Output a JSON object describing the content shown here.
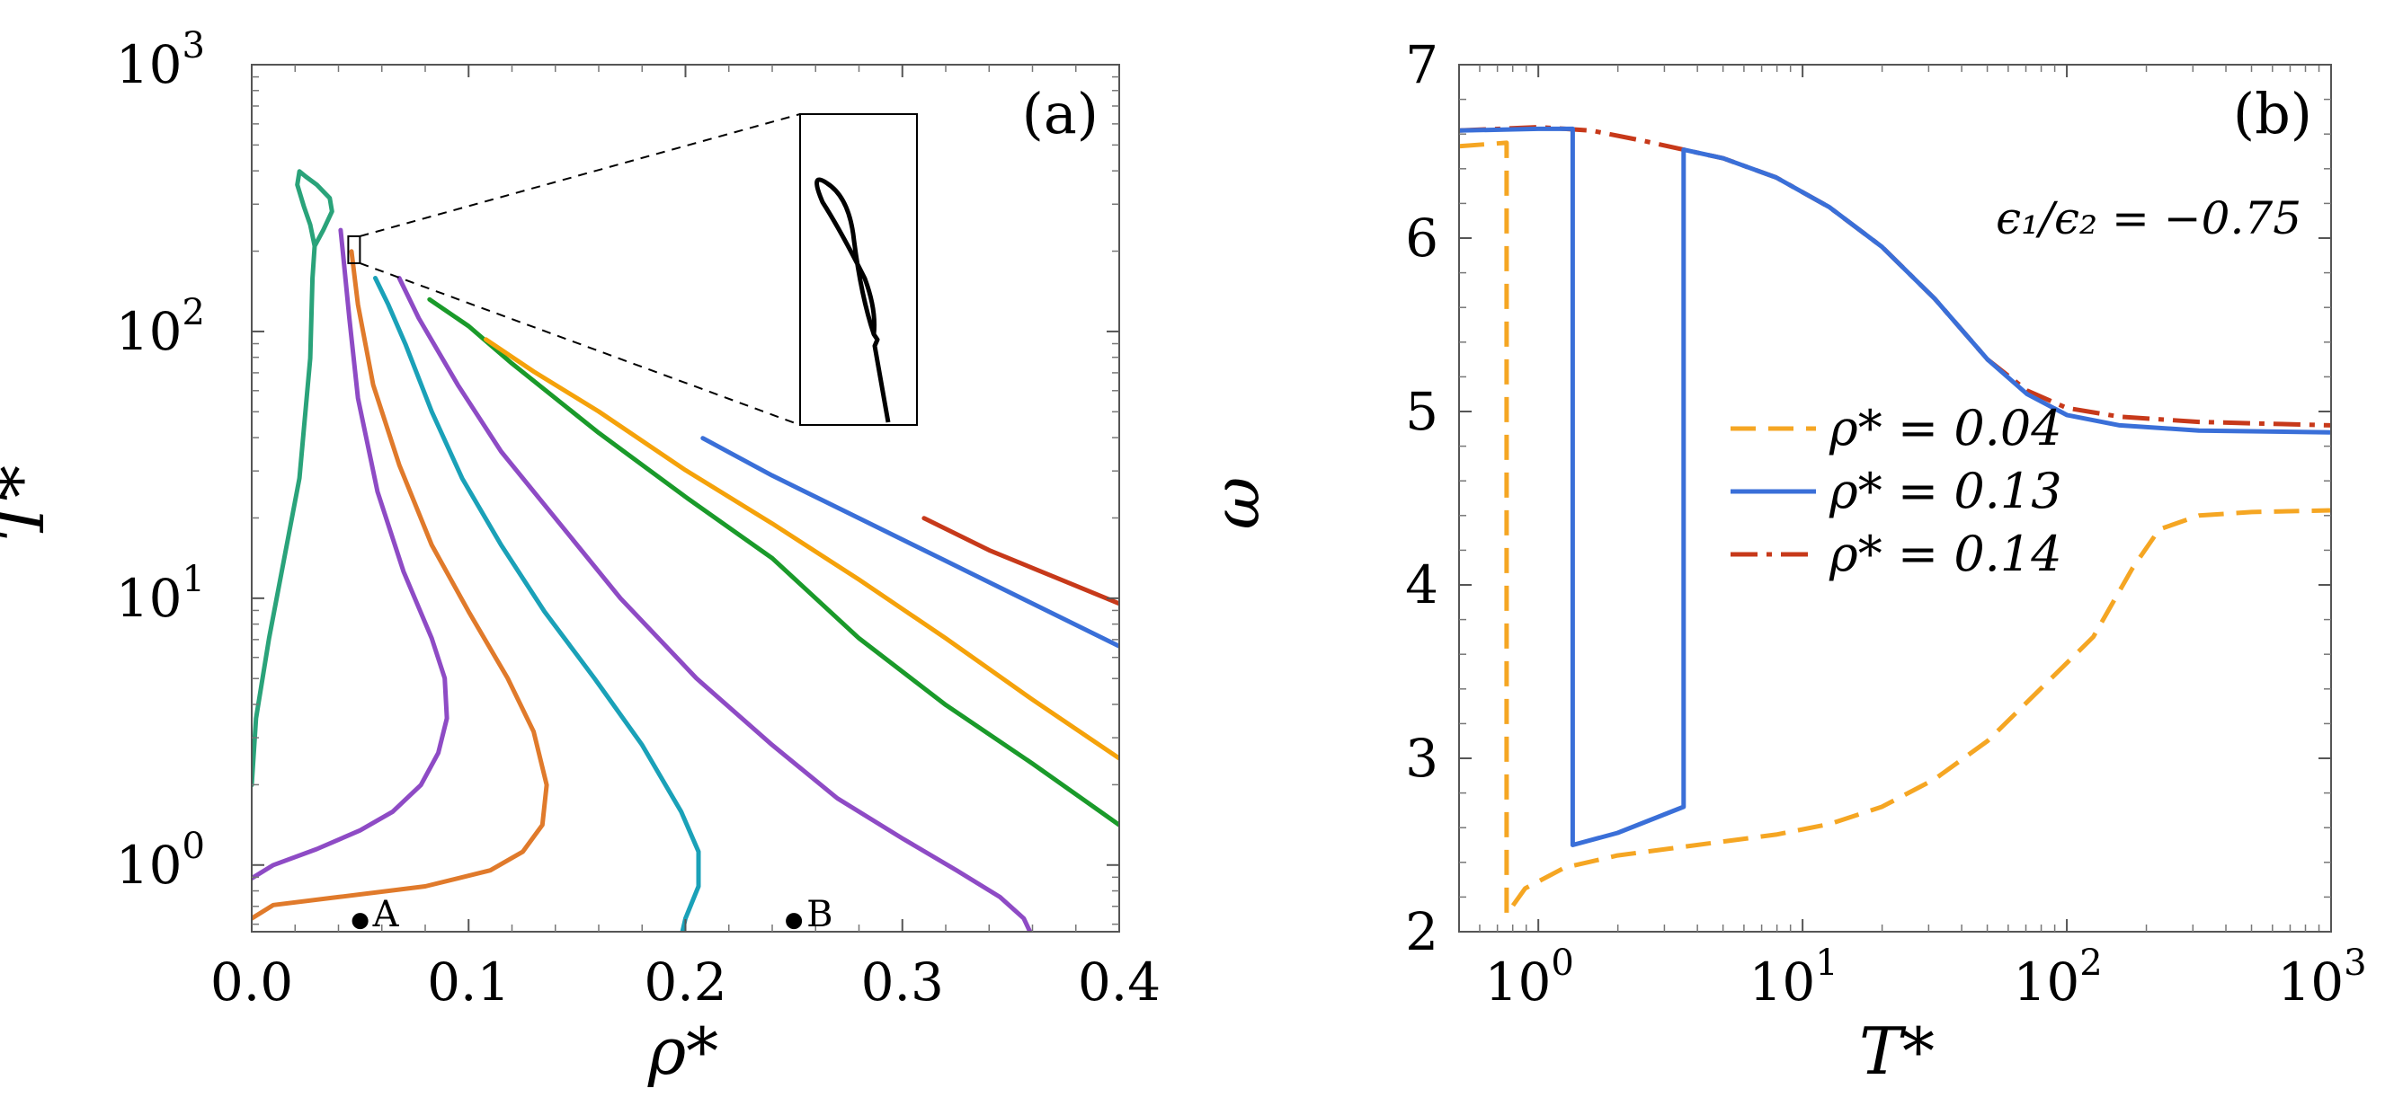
{
  "chart_data": [
    {
      "panel": "a",
      "type": "line",
      "panel_label": "(a)",
      "xlabel": "ρ*",
      "ylabel": "T*",
      "xlim": [
        0.0,
        0.4
      ],
      "ylim_log10": [
        -0.25,
        3.0
      ],
      "y_scale": "log",
      "x_ticks": [
        {
          "value": 0.0,
          "label": "0.0"
        },
        {
          "value": 0.1,
          "label": "0.1"
        },
        {
          "value": 0.2,
          "label": "0.2"
        },
        {
          "value": 0.3,
          "label": "0.3"
        },
        {
          "value": 0.4,
          "label": "0.4"
        }
      ],
      "y_ticks": [
        {
          "exp": 0,
          "base": "10",
          "sup": "0"
        },
        {
          "exp": 1,
          "base": "10",
          "sup": "1"
        },
        {
          "exp": 2,
          "base": "10",
          "sup": "2"
        },
        {
          "exp": 3,
          "base": "10",
          "sup": "3"
        }
      ],
      "series": [
        {
          "name": "teal-loop",
          "color": "#2aa37a",
          "points": [
            [
              0.0,
              0.3
            ],
            [
              0.002,
              0.55
            ],
            [
              0.008,
              0.85
            ],
            [
              0.015,
              1.15
            ],
            [
              0.022,
              1.45
            ],
            [
              0.027,
              1.9
            ],
            [
              0.028,
              2.2
            ],
            [
              0.029,
              2.32
            ],
            [
              0.033,
              2.38
            ],
            [
              0.037,
              2.45
            ],
            [
              0.036,
              2.5
            ],
            [
              0.03,
              2.55
            ],
            [
              0.025,
              2.58
            ],
            [
              0.022,
              2.6
            ],
            [
              0.021,
              2.55
            ],
            [
              0.024,
              2.47
            ],
            [
              0.027,
              2.4
            ],
            [
              0.029,
              2.32
            ]
          ]
        },
        {
          "name": "purple-inner",
          "color": "#8e4bc5",
          "points": [
            [
              0.0,
              -0.05
            ],
            [
              0.01,
              0.0
            ],
            [
              0.03,
              0.06
            ],
            [
              0.05,
              0.13
            ],
            [
              0.065,
              0.2
            ],
            [
              0.078,
              0.3
            ],
            [
              0.086,
              0.42
            ],
            [
              0.09,
              0.55
            ],
            [
              0.089,
              0.7
            ],
            [
              0.083,
              0.85
            ],
            [
              0.07,
              1.1
            ],
            [
              0.058,
              1.4
            ],
            [
              0.049,
              1.75
            ],
            [
              0.045,
              2.05
            ],
            [
              0.042,
              2.3
            ],
            [
              0.041,
              2.38
            ]
          ]
        },
        {
          "name": "orange-dark",
          "color": "#e07a2b",
          "points": [
            [
              0.0,
              -0.2
            ],
            [
              0.01,
              -0.15
            ],
            [
              0.04,
              -0.12
            ],
            [
              0.08,
              -0.08
            ],
            [
              0.11,
              -0.02
            ],
            [
              0.125,
              0.05
            ],
            [
              0.134,
              0.15
            ],
            [
              0.136,
              0.3
            ],
            [
              0.13,
              0.5
            ],
            [
              0.118,
              0.7
            ],
            [
              0.1,
              0.95
            ],
            [
              0.083,
              1.2
            ],
            [
              0.068,
              1.5
            ],
            [
              0.056,
              1.8
            ],
            [
              0.049,
              2.1
            ],
            [
              0.046,
              2.3
            ]
          ]
        },
        {
          "name": "cyan",
          "color": "#1aa1b8",
          "points": [
            [
              0.198,
              -0.27
            ],
            [
              0.2,
              -0.2
            ],
            [
              0.206,
              -0.08
            ],
            [
              0.206,
              0.05
            ],
            [
              0.198,
              0.2
            ],
            [
              0.18,
              0.45
            ],
            [
              0.158,
              0.7
            ],
            [
              0.135,
              0.95
            ],
            [
              0.115,
              1.2
            ],
            [
              0.097,
              1.45
            ],
            [
              0.083,
              1.7
            ],
            [
              0.071,
              1.95
            ],
            [
              0.063,
              2.1
            ],
            [
              0.057,
              2.2
            ]
          ]
        },
        {
          "name": "purple-outer",
          "color": "#8e4bc5",
          "points": [
            [
              0.36,
              -0.27
            ],
            [
              0.356,
              -0.2
            ],
            [
              0.345,
              -0.12
            ],
            [
              0.325,
              -0.02
            ],
            [
              0.3,
              0.1
            ],
            [
              0.27,
              0.25
            ],
            [
              0.24,
              0.45
            ],
            [
              0.205,
              0.7
            ],
            [
              0.17,
              1.0
            ],
            [
              0.14,
              1.3
            ],
            [
              0.115,
              1.55
            ],
            [
              0.095,
              1.8
            ],
            [
              0.077,
              2.05
            ],
            [
              0.068,
              2.2
            ]
          ]
        },
        {
          "name": "green",
          "color": "#1a9a2a",
          "points": [
            [
              0.4,
              0.15
            ],
            [
              0.36,
              0.38
            ],
            [
              0.32,
              0.6
            ],
            [
              0.28,
              0.85
            ],
            [
              0.24,
              1.15
            ],
            [
              0.2,
              1.38
            ],
            [
              0.16,
              1.62
            ],
            [
              0.12,
              1.88
            ],
            [
              0.1,
              2.02
            ],
            [
              0.082,
              2.12
            ]
          ]
        },
        {
          "name": "orange",
          "color": "#f5a20a",
          "points": [
            [
              0.4,
              0.4
            ],
            [
              0.36,
              0.62
            ],
            [
              0.32,
              0.85
            ],
            [
              0.28,
              1.07
            ],
            [
              0.24,
              1.28
            ],
            [
              0.2,
              1.48
            ],
            [
              0.16,
              1.7
            ],
            [
              0.13,
              1.85
            ],
            [
              0.108,
              1.97
            ]
          ]
        },
        {
          "name": "blue",
          "color": "#3a6fd8",
          "points": [
            [
              0.4,
              0.82
            ],
            [
              0.36,
              0.98
            ],
            [
              0.32,
              1.14
            ],
            [
              0.28,
              1.3
            ],
            [
              0.24,
              1.46
            ],
            [
              0.208,
              1.6
            ]
          ]
        },
        {
          "name": "red",
          "color": "#c7391a",
          "points": [
            [
              0.4,
              0.98
            ],
            [
              0.37,
              1.08
            ],
            [
              0.34,
              1.18
            ],
            [
              0.31,
              1.3
            ]
          ]
        }
      ],
      "annotations": [
        {
          "label": "A",
          "x": 0.05,
          "log10y": -0.21
        },
        {
          "label": "B",
          "x": 0.25,
          "log10y": -0.21
        }
      ]
    },
    {
      "panel": "b",
      "type": "line",
      "panel_label": "(b)",
      "xlabel": "T*",
      "ylabel": "ω",
      "x_scale": "log",
      "xlim_log10": [
        -0.3,
        3.0
      ],
      "ylim": [
        2,
        7
      ],
      "annotation": "ϵ₁/ϵ₂ = −0.75",
      "x_ticks": [
        {
          "exp": 0,
          "base": "10",
          "sup": "0"
        },
        {
          "exp": 1,
          "base": "10",
          "sup": "1"
        },
        {
          "exp": 2,
          "base": "10",
          "sup": "2"
        },
        {
          "exp": 3,
          "base": "10",
          "sup": "3"
        }
      ],
      "y_ticks": [
        2,
        3,
        4,
        5,
        6,
        7
      ],
      "legend_position": "center-right",
      "series": [
        {
          "name": "ρ* = 0.04",
          "color": "#f5a623",
          "dash": "28,14",
          "points": [
            [
              -0.3,
              6.53
            ],
            [
              -0.12,
              6.55
            ],
            [
              -0.12,
              2.1
            ],
            [
              -0.05,
              2.25
            ],
            [
              0.1,
              2.37
            ],
            [
              0.3,
              2.44
            ],
            [
              0.5,
              2.48
            ],
            [
              0.7,
              2.52
            ],
            [
              0.9,
              2.56
            ],
            [
              1.1,
              2.62
            ],
            [
              1.3,
              2.72
            ],
            [
              1.5,
              2.88
            ],
            [
              1.7,
              3.1
            ],
            [
              1.9,
              3.4
            ],
            [
              2.1,
              3.7
            ],
            [
              2.25,
              4.1
            ],
            [
              2.35,
              4.32
            ],
            [
              2.5,
              4.4
            ],
            [
              2.7,
              4.42
            ],
            [
              3.0,
              4.43
            ]
          ]
        },
        {
          "name": "ρ* = 0.13",
          "color": "#3a6fd8",
          "dash": "",
          "points": [
            [
              -0.3,
              6.62
            ],
            [
              0.0,
              6.63
            ],
            [
              0.13,
              6.63
            ],
            [
              0.13,
              2.5
            ],
            [
              0.3,
              2.57
            ],
            [
              0.55,
              2.72
            ],
            [
              0.55,
              6.51
            ],
            [
              0.7,
              6.46
            ],
            [
              0.9,
              6.35
            ],
            [
              1.1,
              6.18
            ],
            [
              1.3,
              5.95
            ],
            [
              1.5,
              5.65
            ],
            [
              1.7,
              5.3
            ],
            [
              1.85,
              5.1
            ],
            [
              2.0,
              4.98
            ],
            [
              2.2,
              4.92
            ],
            [
              2.5,
              4.89
            ],
            [
              3.0,
              4.88
            ]
          ]
        },
        {
          "name": "ρ* = 0.14",
          "color": "#c7391a",
          "dash": "30,10,6,10",
          "points": [
            [
              -0.3,
              6.62
            ],
            [
              0.0,
              6.64
            ],
            [
              0.2,
              6.62
            ],
            [
              0.4,
              6.56
            ],
            [
              0.55,
              6.51
            ],
            [
              0.7,
              6.46
            ],
            [
              0.9,
              6.35
            ],
            [
              1.1,
              6.18
            ],
            [
              1.3,
              5.95
            ],
            [
              1.5,
              5.65
            ],
            [
              1.7,
              5.3
            ],
            [
              1.85,
              5.12
            ],
            [
              2.0,
              5.02
            ],
            [
              2.2,
              4.97
            ],
            [
              2.5,
              4.94
            ],
            [
              3.0,
              4.92
            ]
          ]
        }
      ]
    }
  ]
}
